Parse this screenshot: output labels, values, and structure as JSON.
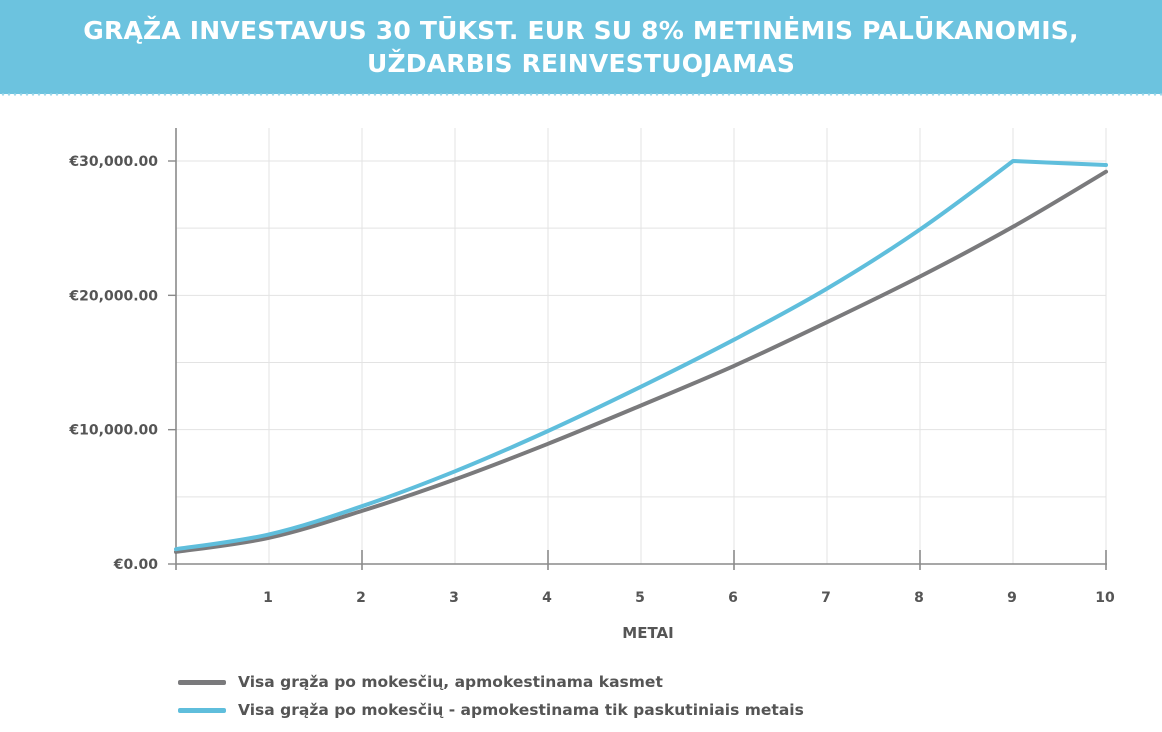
{
  "header": {
    "title_line1": "GRĄŽA INVESTAVUS 30 TŪKST. EUR SU 8% METINĖMIS PALŪKANOMIS,",
    "title_line2": "UŽDARBIS REINVESTUOJAMAS"
  },
  "chart_data": {
    "type": "line",
    "title": "GRĄŽA INVESTAVUS 30 TŪKST. EUR SU 8% METINĖMIS PALŪKANOMIS, UŽDARBIS REINVESTUOJAMAS",
    "xlabel": "METAI",
    "ylabel": "",
    "x": [
      0,
      1,
      2,
      3,
      4,
      5,
      6,
      7,
      8,
      9,
      10
    ],
    "xlim": [
      0,
      10
    ],
    "ylim": [
      0,
      32500
    ],
    "x_ticks": [
      "1",
      "2",
      "3",
      "4",
      "5",
      "6",
      "7",
      "8",
      "9",
      "10"
    ],
    "y_ticks": [
      0,
      10000,
      20000,
      30000
    ],
    "y_tick_labels": [
      "€0.00",
      "€10,000.00",
      "€20,000.00",
      "€30,000.00"
    ],
    "grid": true,
    "legend_position": "bottom-left",
    "series": [
      {
        "name": "Visa grąža po mokesčių, apmokestinama kasmet",
        "color": "#7a7a7c",
        "values": [
          900,
          1950,
          3950,
          6300,
          8950,
          11800,
          14750,
          18000,
          21400,
          25100,
          29200
        ]
      },
      {
        "name": "Visa grąža po mokesčių - apmokestinama tik paskutiniais metais",
        "color": "#5fbedc",
        "values": [
          1100,
          2200,
          4300,
          6900,
          9900,
          13200,
          16700,
          20500,
          24900,
          30000,
          29700
        ]
      }
    ]
  }
}
